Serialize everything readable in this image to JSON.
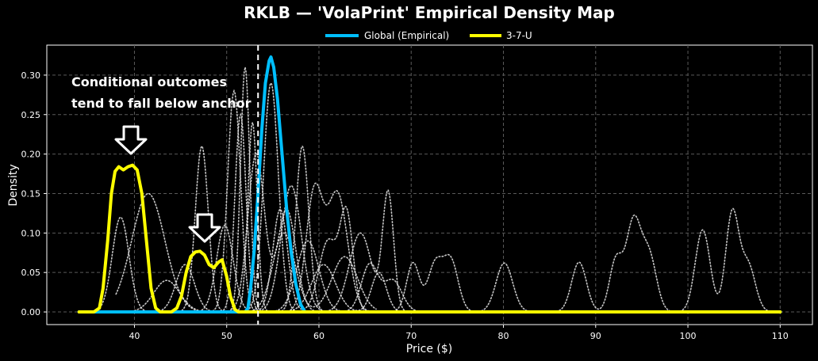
{
  "chart_data": {
    "type": "line",
    "title": "RKLB — 'VolaPrint' Empirical Density Map",
    "xlabel": "Price ($)",
    "ylabel": "Density",
    "xlim": [
      30.5,
      113.5
    ],
    "ylim": [
      -0.016,
      0.338
    ],
    "xticks": [
      40,
      50,
      60,
      70,
      80,
      90,
      100,
      110
    ],
    "yticks": [
      0.0,
      0.05,
      0.1,
      0.15,
      0.2,
      0.25,
      0.3
    ],
    "grid": true,
    "legend_position": "top-center",
    "anchor_x": 53.4,
    "annotation": [
      "Conditional outcomes",
      "tend to fall below anchor"
    ],
    "series": [
      {
        "name": "Global (Empirical)",
        "color": "#00bfff",
        "points": [
          [
            34,
            0
          ],
          [
            52,
            0
          ],
          [
            52.3,
            0.005
          ],
          [
            52.6,
            0.03
          ],
          [
            53,
            0.08
          ],
          [
            53.4,
            0.15
          ],
          [
            53.8,
            0.23
          ],
          [
            54.2,
            0.29
          ],
          [
            54.6,
            0.318
          ],
          [
            54.8,
            0.323
          ],
          [
            55.1,
            0.31
          ],
          [
            55.5,
            0.27
          ],
          [
            56,
            0.2
          ],
          [
            56.5,
            0.13
          ],
          [
            57,
            0.075
          ],
          [
            57.5,
            0.035
          ],
          [
            58,
            0.01
          ],
          [
            58.5,
            0
          ],
          [
            110,
            0
          ]
        ]
      },
      {
        "name": "3-7-U",
        "color": "#ffff00",
        "points": [
          [
            34,
            0
          ],
          [
            35.6,
            0
          ],
          [
            36.2,
            0.005
          ],
          [
            36.6,
            0.03
          ],
          [
            37.1,
            0.09
          ],
          [
            37.5,
            0.15
          ],
          [
            37.9,
            0.178
          ],
          [
            38.3,
            0.184
          ],
          [
            38.8,
            0.18
          ],
          [
            39.3,
            0.184
          ],
          [
            39.8,
            0.186
          ],
          [
            40.3,
            0.18
          ],
          [
            40.8,
            0.15
          ],
          [
            41.3,
            0.09
          ],
          [
            41.8,
            0.03
          ],
          [
            42.3,
            0.005
          ],
          [
            42.8,
            0
          ],
          [
            44,
            0
          ],
          [
            44.6,
            0.005
          ],
          [
            45.1,
            0.02
          ],
          [
            45.6,
            0.05
          ],
          [
            46.1,
            0.07
          ],
          [
            46.6,
            0.076
          ],
          [
            47.1,
            0.077
          ],
          [
            47.6,
            0.072
          ],
          [
            48.1,
            0.06
          ],
          [
            48.6,
            0.056
          ],
          [
            49.1,
            0.063
          ],
          [
            49.5,
            0.066
          ],
          [
            50,
            0.045
          ],
          [
            50.4,
            0.02
          ],
          [
            50.9,
            0.003
          ],
          [
            51.3,
            0
          ],
          [
            110,
            0
          ]
        ]
      }
    ],
    "background_paths": [
      {
        "c": [
          38.5,
          54.8
        ],
        "a": [
          0.12,
          0.29
        ],
        "w": [
          0.9,
          0.8
        ]
      },
      {
        "c": [
          41.5,
          50.8,
          57.0
        ],
        "a": [
          0.15,
          0.28,
          0.16
        ],
        "w": [
          1.8,
          0.7,
          1.1
        ]
      },
      {
        "c": [
          43.5,
          52.0,
          58.2
        ],
        "a": [
          0.04,
          0.31,
          0.21
        ],
        "w": [
          1.4,
          0.5,
          0.7
        ]
      },
      {
        "c": [
          47.3,
          53.2,
          56.5
        ],
        "a": [
          0.21,
          0.2,
          0.13
        ],
        "w": [
          0.7,
          0.9,
          1.0
        ]
      },
      {
        "c": [
          51.5,
          59.5,
          62.0
        ],
        "a": [
          0.25,
          0.15,
          0.15
        ],
        "w": [
          0.6,
          0.9,
          1.1
        ]
      },
      {
        "c": [
          52.8,
          64.5,
          67.5
        ],
        "a": [
          0.24,
          0.1,
          0.15
        ],
        "w": [
          0.5,
          1.2,
          0.6
        ]
      },
      {
        "c": [
          55.8,
          61.0,
          63.0
        ],
        "a": [
          0.13,
          0.09,
          0.12
        ],
        "w": [
          0.8,
          1.0,
          0.7
        ]
      },
      {
        "c": [
          58.8,
          65.5,
          68.0
        ],
        "a": [
          0.09,
          0.06,
          0.04
        ],
        "w": [
          1.2,
          0.9,
          1.0
        ]
      },
      {
        "c": [
          49.8,
          60.5,
          66.5
        ],
        "a": [
          0.11,
          0.06,
          0.05
        ],
        "w": [
          0.9,
          1.3,
          0.8
        ]
      },
      {
        "c": [
          45.5,
          56.2,
          62.8
        ],
        "a": [
          0.06,
          0.1,
          0.07
        ],
        "w": [
          1.0,
          1.2,
          1.4
        ]
      },
      {
        "c": [
          70.2,
          72.6,
          74.3
        ],
        "a": [
          0.062,
          0.06,
          0.064
        ],
        "w": [
          0.7,
          0.8,
          0.8
        ]
      },
      {
        "c": [
          80.1
        ],
        "a": [
          0.062
        ],
        "w": [
          0.9
        ]
      },
      {
        "c": [
          88.2,
          92.2,
          94.1,
          95.8
        ],
        "a": [
          0.063,
          0.065,
          0.113,
          0.07
        ],
        "w": [
          0.8,
          0.7,
          0.8,
          0.8
        ]
      },
      {
        "c": [
          101.6,
          104.8,
          106.5
        ],
        "a": [
          0.104,
          0.124,
          0.06
        ],
        "w": [
          0.8,
          0.7,
          0.8
        ]
      }
    ]
  }
}
